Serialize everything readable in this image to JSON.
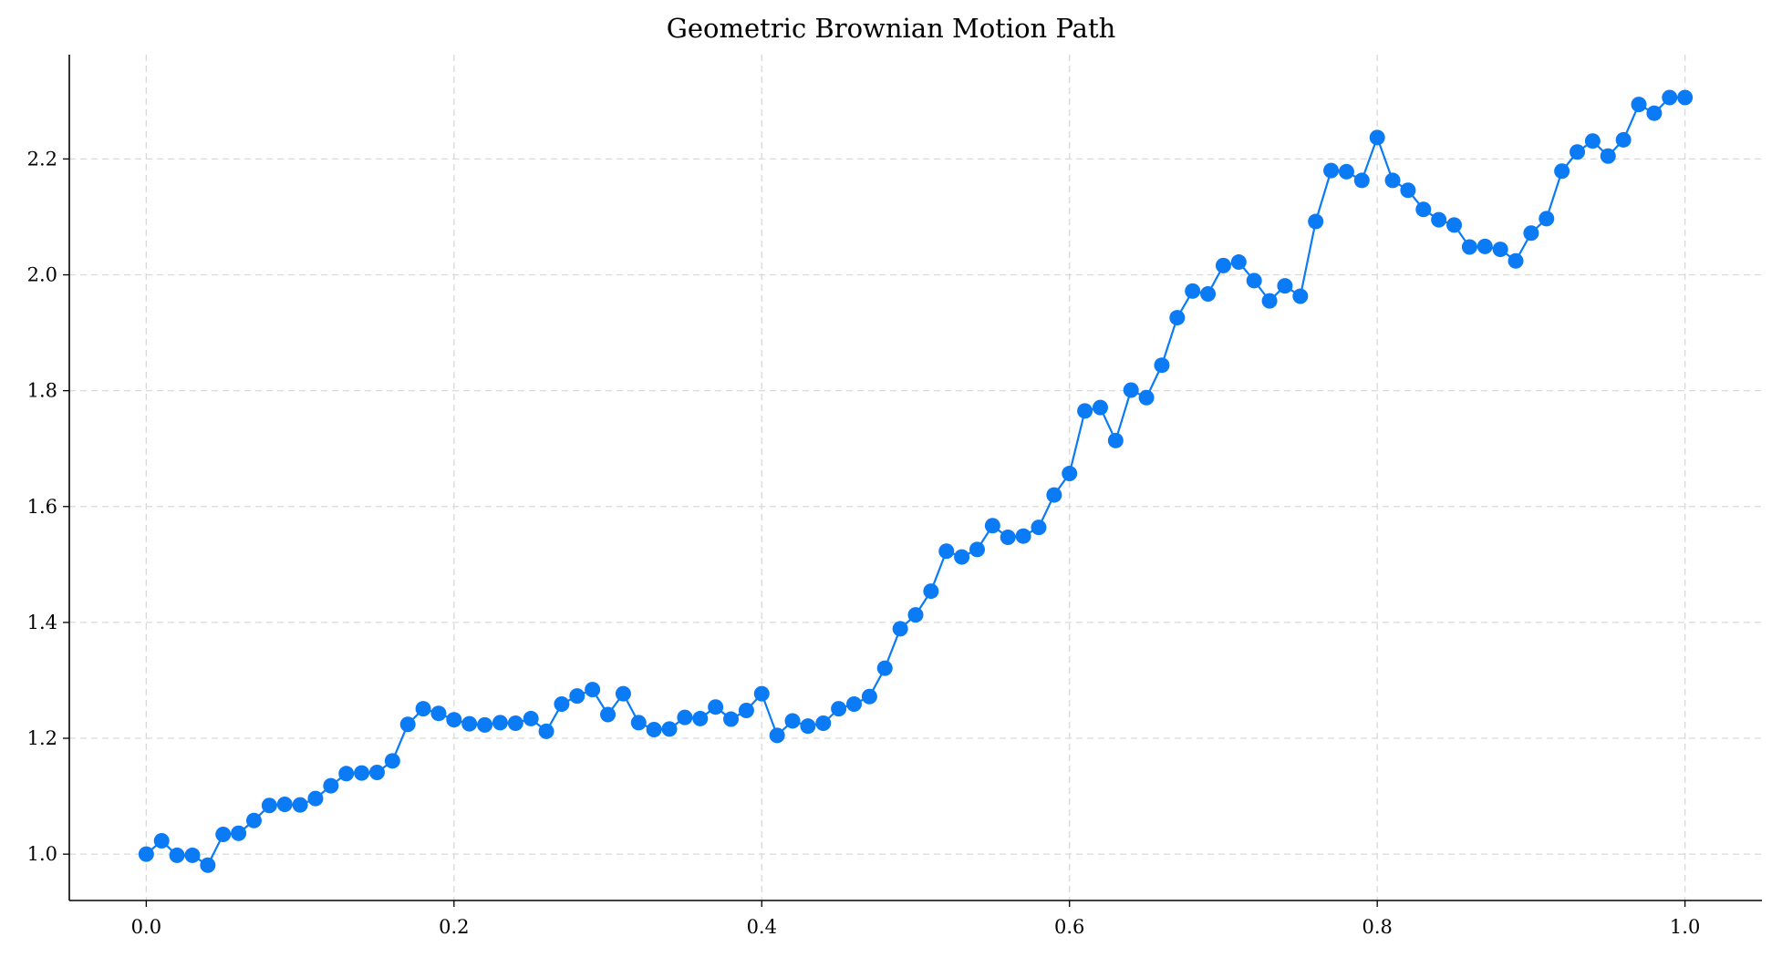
{
  "chart_data": {
    "type": "line",
    "title": "Geometric Brownian Motion Path",
    "xlabel": "",
    "ylabel": "",
    "xlim": [
      -0.05,
      1.05
    ],
    "ylim": [
      0.92,
      2.38
    ],
    "grid": true,
    "x_ticks": [
      "0.0",
      "0.2",
      "0.4",
      "0.6",
      "0.8",
      "1.0"
    ],
    "y_ticks": [
      "1.0",
      "1.2",
      "1.4",
      "1.6",
      "1.8",
      "2.0",
      "2.2"
    ],
    "color": "#0a7af5",
    "marker": "circle",
    "x": [
      0.0,
      0.01,
      0.02,
      0.03,
      0.04,
      0.05,
      0.06,
      0.07,
      0.08,
      0.09,
      0.1,
      0.11,
      0.12,
      0.13,
      0.14,
      0.15,
      0.16,
      0.17,
      0.18,
      0.19,
      0.2,
      0.21,
      0.22,
      0.23,
      0.24,
      0.25,
      0.26,
      0.27,
      0.28,
      0.29,
      0.3,
      0.31,
      0.32,
      0.33,
      0.34,
      0.35,
      0.36,
      0.37,
      0.38,
      0.39,
      0.4,
      0.41,
      0.42,
      0.43,
      0.44,
      0.45,
      0.46,
      0.47,
      0.48,
      0.49,
      0.5,
      0.51,
      0.52,
      0.53,
      0.54,
      0.55,
      0.56,
      0.57,
      0.58,
      0.59,
      0.6,
      0.61,
      0.62,
      0.63,
      0.64,
      0.65,
      0.66,
      0.67,
      0.68,
      0.69,
      0.7,
      0.71,
      0.72,
      0.73,
      0.74,
      0.75,
      0.76,
      0.77,
      0.78,
      0.79,
      0.8,
      0.81,
      0.82,
      0.83,
      0.84,
      0.85,
      0.86,
      0.87,
      0.88,
      0.89,
      0.9,
      0.91,
      0.92,
      0.93,
      0.94,
      0.95,
      0.96,
      0.97,
      0.98,
      0.99,
      1.0
    ],
    "y": [
      1.0,
      1.023,
      0.998,
      0.998,
      0.981,
      1.034,
      1.036,
      1.058,
      1.084,
      1.086,
      1.085,
      1.096,
      1.118,
      1.139,
      1.14,
      1.141,
      1.161,
      1.224,
      1.251,
      1.243,
      1.232,
      1.225,
      1.223,
      1.227,
      1.226,
      1.234,
      1.212,
      1.259,
      1.273,
      1.284,
      1.241,
      1.277,
      1.227,
      1.215,
      1.216,
      1.236,
      1.234,
      1.254,
      1.233,
      1.248,
      1.277,
      1.205,
      1.23,
      1.221,
      1.226,
      1.251,
      1.259,
      1.272,
      1.321,
      1.389,
      1.413,
      1.454,
      1.523,
      1.513,
      1.526,
      1.567,
      1.547,
      1.549,
      1.564,
      1.62,
      1.657,
      1.765,
      1.771,
      1.714,
      1.801,
      1.788,
      1.844,
      1.926,
      1.972,
      1.967,
      2.016,
      2.022,
      1.99,
      1.955,
      1.981,
      1.963,
      2.092,
      2.18,
      2.178,
      2.163,
      2.237,
      2.163,
      2.146,
      2.113,
      2.095,
      2.086,
      2.048,
      2.049,
      2.044,
      2.024,
      2.072,
      2.097,
      2.179,
      2.212,
      2.231,
      2.205,
      2.233,
      2.294,
      2.279,
      2.306,
      2.306
    ]
  }
}
